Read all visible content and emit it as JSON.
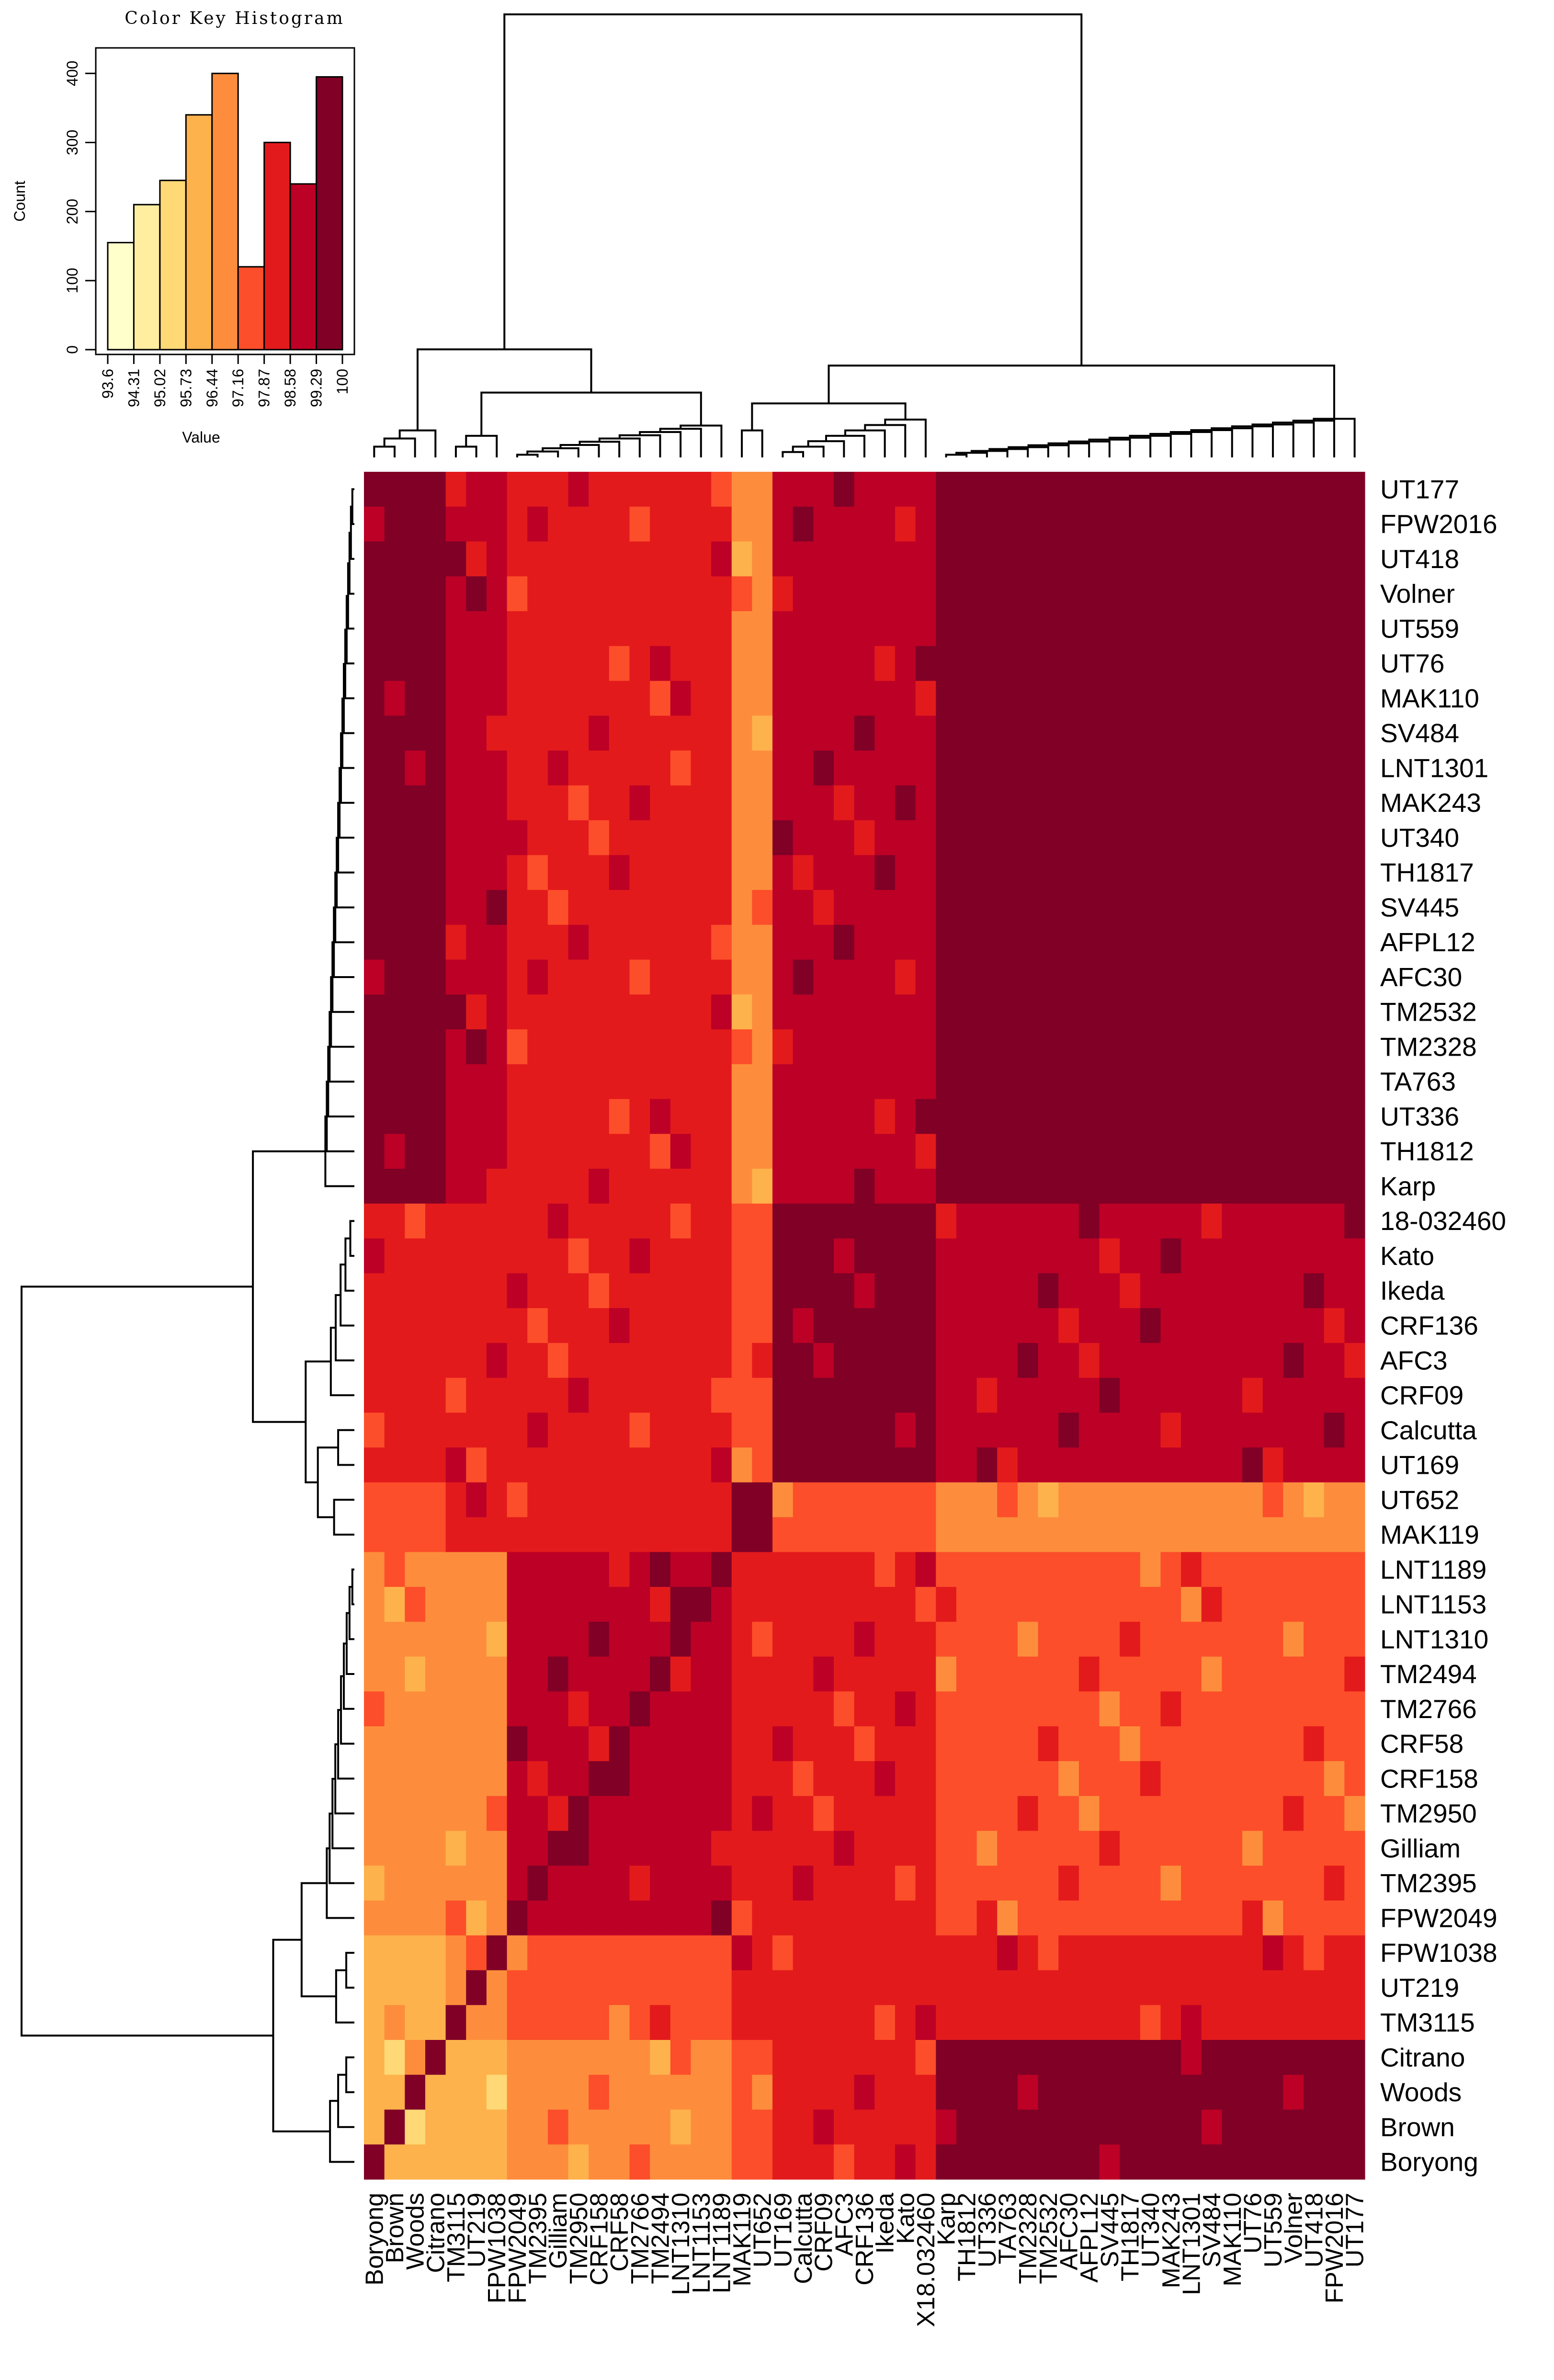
{
  "chart_data": {
    "type": "heatmap",
    "title": "",
    "row_labels": [
      "UT177",
      "FPW2016",
      "UT418",
      "Volner",
      "UT559",
      "UT76",
      "MAK110",
      "SV484",
      "LNT1301",
      "MAK243",
      "UT340",
      "TH1817",
      "SV445",
      "AFPL12",
      "AFC30",
      "TM2532",
      "TM2328",
      "TA763",
      "UT336",
      "TH1812",
      "Karp",
      "18-032460",
      "Kato",
      "Ikeda",
      "CRF136",
      "AFC3",
      "CRF09",
      "Calcutta",
      "UT169",
      "UT652",
      "MAK119",
      "LNT1189",
      "LNT1153",
      "LNT1310",
      "TM2494",
      "TM2766",
      "CRF58",
      "CRF158",
      "TM2950",
      "Gilliam",
      "TM2395",
      "FPW2049",
      "FPW1038",
      "UT219",
      "TM3115",
      "Citrano",
      "Woods",
      "Brown",
      "Boryong"
    ],
    "col_labels": [
      "Boryong",
      "Brown",
      "Woods",
      "Citrano",
      "TM3115",
      "UT219",
      "FPW1038",
      "FPW2049",
      "TM2395",
      "Gilliam",
      "TM2950",
      "CRF158",
      "CRF58",
      "TM2766",
      "TM2494",
      "LNT1310",
      "LNT1153",
      "LNT1189",
      "MAK119",
      "UT652",
      "UT169",
      "Calcutta",
      "CRF09",
      "AFC3",
      "CRF136",
      "Ikeda",
      "Kato",
      "X18.032460",
      "Karp",
      "TH1812",
      "UT336",
      "TA763",
      "TM2328",
      "TM2532",
      "AFC30",
      "AFPL12",
      "SV445",
      "TH1817",
      "UT340",
      "MAK243",
      "LNT1301",
      "SV484",
      "MAK110",
      "UT76",
      "UT559",
      "Volner",
      "UT418",
      "FPW2016",
      "UT177"
    ],
    "group_sizes": [
      4,
      3,
      11,
      2,
      8,
      21
    ],
    "block_levels": [
      [
        3,
        3,
        4,
        5,
        6,
        8
      ],
      [
        3,
        4,
        5,
        6,
        6,
        6
      ],
      [
        4,
        4,
        7,
        6,
        6,
        5
      ],
      [
        5,
        6,
        6,
        8,
        5,
        4
      ],
      [
        6,
        6,
        6,
        5,
        8,
        7
      ],
      [
        8,
        7,
        6,
        4,
        7,
        9
      ]
    ],
    "diagonal_value": 100,
    "color_key": {
      "title": "Color Key Histogram",
      "xlabel": "Value",
      "ylabel": "Count",
      "bin_edges": [
        93.6,
        94.31,
        95.02,
        95.73,
        96.44,
        97.16,
        97.87,
        98.58,
        99.29,
        100
      ],
      "bin_counts": [
        155,
        210,
        245,
        340,
        400,
        120,
        300,
        240,
        395
      ],
      "bin_colors": [
        "#FFFFCC",
        "#FFEDA0",
        "#FED976",
        "#FEB24C",
        "#FD8D3C",
        "#FC4E2A",
        "#E31A1C",
        "#BD0026",
        "#800026"
      ],
      "y_ticks": [
        0,
        100,
        200,
        300,
        400
      ],
      "x_tick_labels": [
        "93.6",
        "94.31",
        "95.02",
        "95.73",
        "96.44",
        "97.16",
        "97.87",
        "98.58",
        "99.29",
        "100"
      ],
      "ylim": [
        0,
        430
      ]
    }
  }
}
